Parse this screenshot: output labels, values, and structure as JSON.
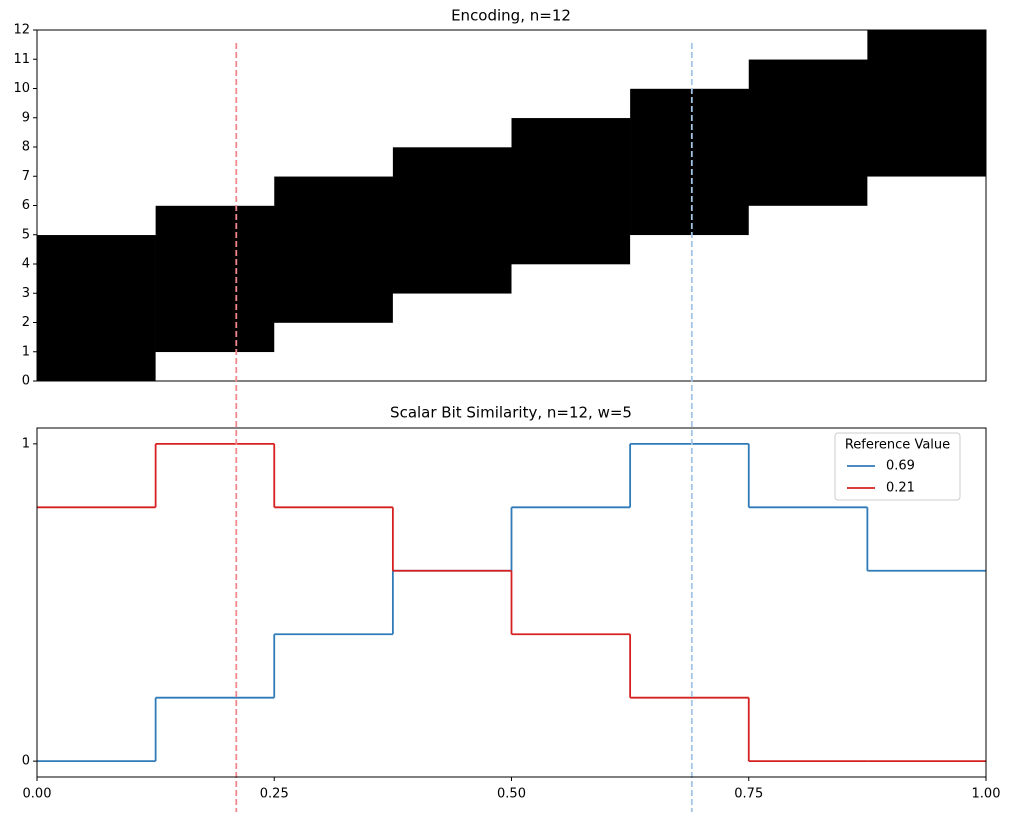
{
  "chart_data": [
    {
      "type": "heatmap",
      "title": "Encoding, n=12",
      "xlim": [
        0,
        1
      ],
      "ylim": [
        0,
        12
      ],
      "yticks": [
        0,
        1,
        2,
        3,
        4,
        5,
        6,
        7,
        8,
        9,
        10,
        11,
        12
      ],
      "colors": [
        "#ffffff",
        "#000000"
      ],
      "values": [
        [
          1,
          0,
          0,
          0,
          0,
          0,
          0,
          0
        ],
        [
          1,
          1,
          0,
          0,
          0,
          0,
          0,
          0
        ],
        [
          1,
          1,
          1,
          0,
          0,
          0,
          0,
          0
        ],
        [
          1,
          1,
          1,
          1,
          0,
          0,
          0,
          0
        ],
        [
          1,
          1,
          1,
          1,
          1,
          0,
          0,
          0
        ],
        [
          0,
          1,
          1,
          1,
          1,
          1,
          0,
          0
        ],
        [
          0,
          0,
          1,
          1,
          1,
          1,
          1,
          0
        ],
        [
          0,
          0,
          0,
          1,
          1,
          1,
          1,
          1
        ],
        [
          0,
          0,
          0,
          0,
          1,
          1,
          1,
          1
        ],
        [
          0,
          0,
          0,
          0,
          0,
          1,
          1,
          1
        ],
        [
          0,
          0,
          0,
          0,
          0,
          0,
          1,
          1
        ],
        [
          0,
          0,
          0,
          0,
          0,
          0,
          0,
          1
        ]
      ]
    },
    {
      "type": "step",
      "title": "Scalar Bit Similarity, n=12, w=5",
      "xlim": [
        0,
        1
      ],
      "ylim": [
        -0.05,
        1.05
      ],
      "xticks": [
        {
          "value": 0,
          "label": "0.00"
        },
        {
          "value": 0.25,
          "label": "0.25"
        },
        {
          "value": 0.5,
          "label": "0.50"
        },
        {
          "value": 0.75,
          "label": "0.75"
        },
        {
          "value": 1,
          "label": "1.00"
        }
      ],
      "yticks": [
        0,
        1
      ],
      "x": [
        0,
        0.125,
        0.25,
        0.375,
        0.5,
        0.625,
        0.75,
        0.875
      ],
      "legend_title": "Reference Value",
      "legend": "upper right",
      "series": [
        {
          "name": "0.69",
          "color": "#2f7ab8",
          "values": [
            0,
            0.2,
            0.4,
            0.6,
            0.8,
            1,
            0.8,
            0.6
          ]
        },
        {
          "name": "0.21",
          "color": "#d62020",
          "values": [
            0.8,
            1,
            0.8,
            0.6,
            0.4,
            0.2,
            0,
            0
          ]
        }
      ],
      "reference_lines": [
        {
          "x": 0.21,
          "color": "#f4878c"
        },
        {
          "x": 0.69,
          "color": "#a3c4e2"
        }
      ]
    }
  ]
}
